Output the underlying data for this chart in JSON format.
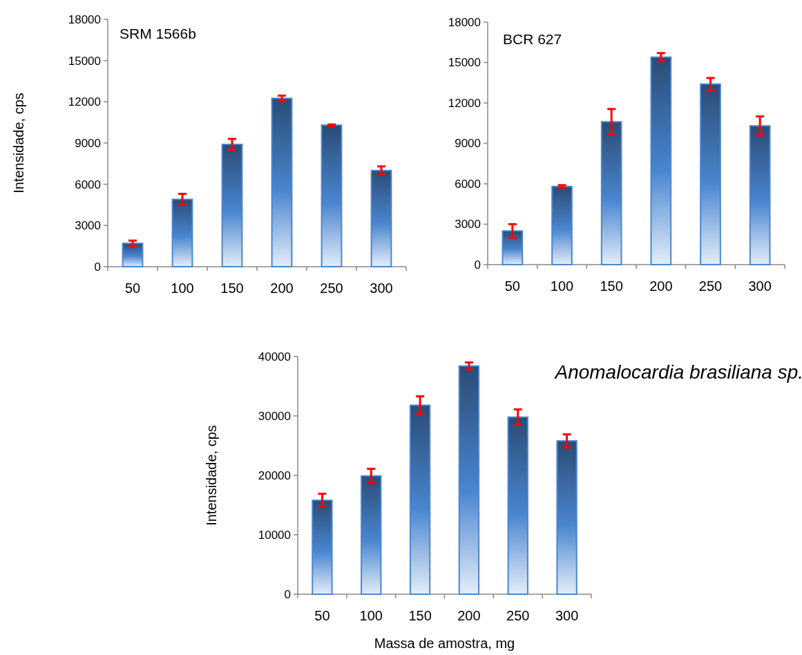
{
  "chart_data": [
    {
      "type": "bar",
      "title": "SRM 1566b",
      "ylabel": "Intensidade, cps",
      "categories": [
        "50",
        "100",
        "150",
        "200",
        "250",
        "300"
      ],
      "values": [
        1700,
        4900,
        8900,
        12250,
        10300,
        7000
      ],
      "errors": [
        200,
        400,
        400,
        200,
        50,
        300
      ],
      "color": "#4a86d0",
      "ylim": [
        0,
        18000
      ],
      "yticks": [
        0,
        3000,
        6000,
        9000,
        12000,
        15000,
        18000
      ],
      "grid": false
    },
    {
      "type": "bar",
      "title": "BCR 627",
      "categories": [
        "50",
        "100",
        "150",
        "200",
        "250",
        "300"
      ],
      "values": [
        2500,
        5800,
        10600,
        15400,
        13400,
        10300
      ],
      "errors": [
        500,
        100,
        950,
        300,
        450,
        700
      ],
      "color": "#4a86d0",
      "ylim": [
        0,
        18000
      ],
      "yticks": [
        0,
        3000,
        6000,
        9000,
        12000,
        15000,
        18000
      ],
      "grid": false
    },
    {
      "type": "bar",
      "title": "Anomalocardia brasiliana sp.",
      "xlabel": "Massa de amostra, mg",
      "ylabel": "Intensidade, cps",
      "categories": [
        "50",
        "100",
        "150",
        "200",
        "250",
        "300"
      ],
      "values": [
        15800,
        19900,
        31800,
        38400,
        29800,
        25800
      ],
      "errors": [
        1100,
        1200,
        1500,
        600,
        1300,
        1100
      ],
      "color": "#4a86d0",
      "ylim": [
        0,
        40000
      ],
      "yticks": [
        0,
        10000,
        20000,
        30000,
        40000
      ],
      "grid": false
    }
  ]
}
